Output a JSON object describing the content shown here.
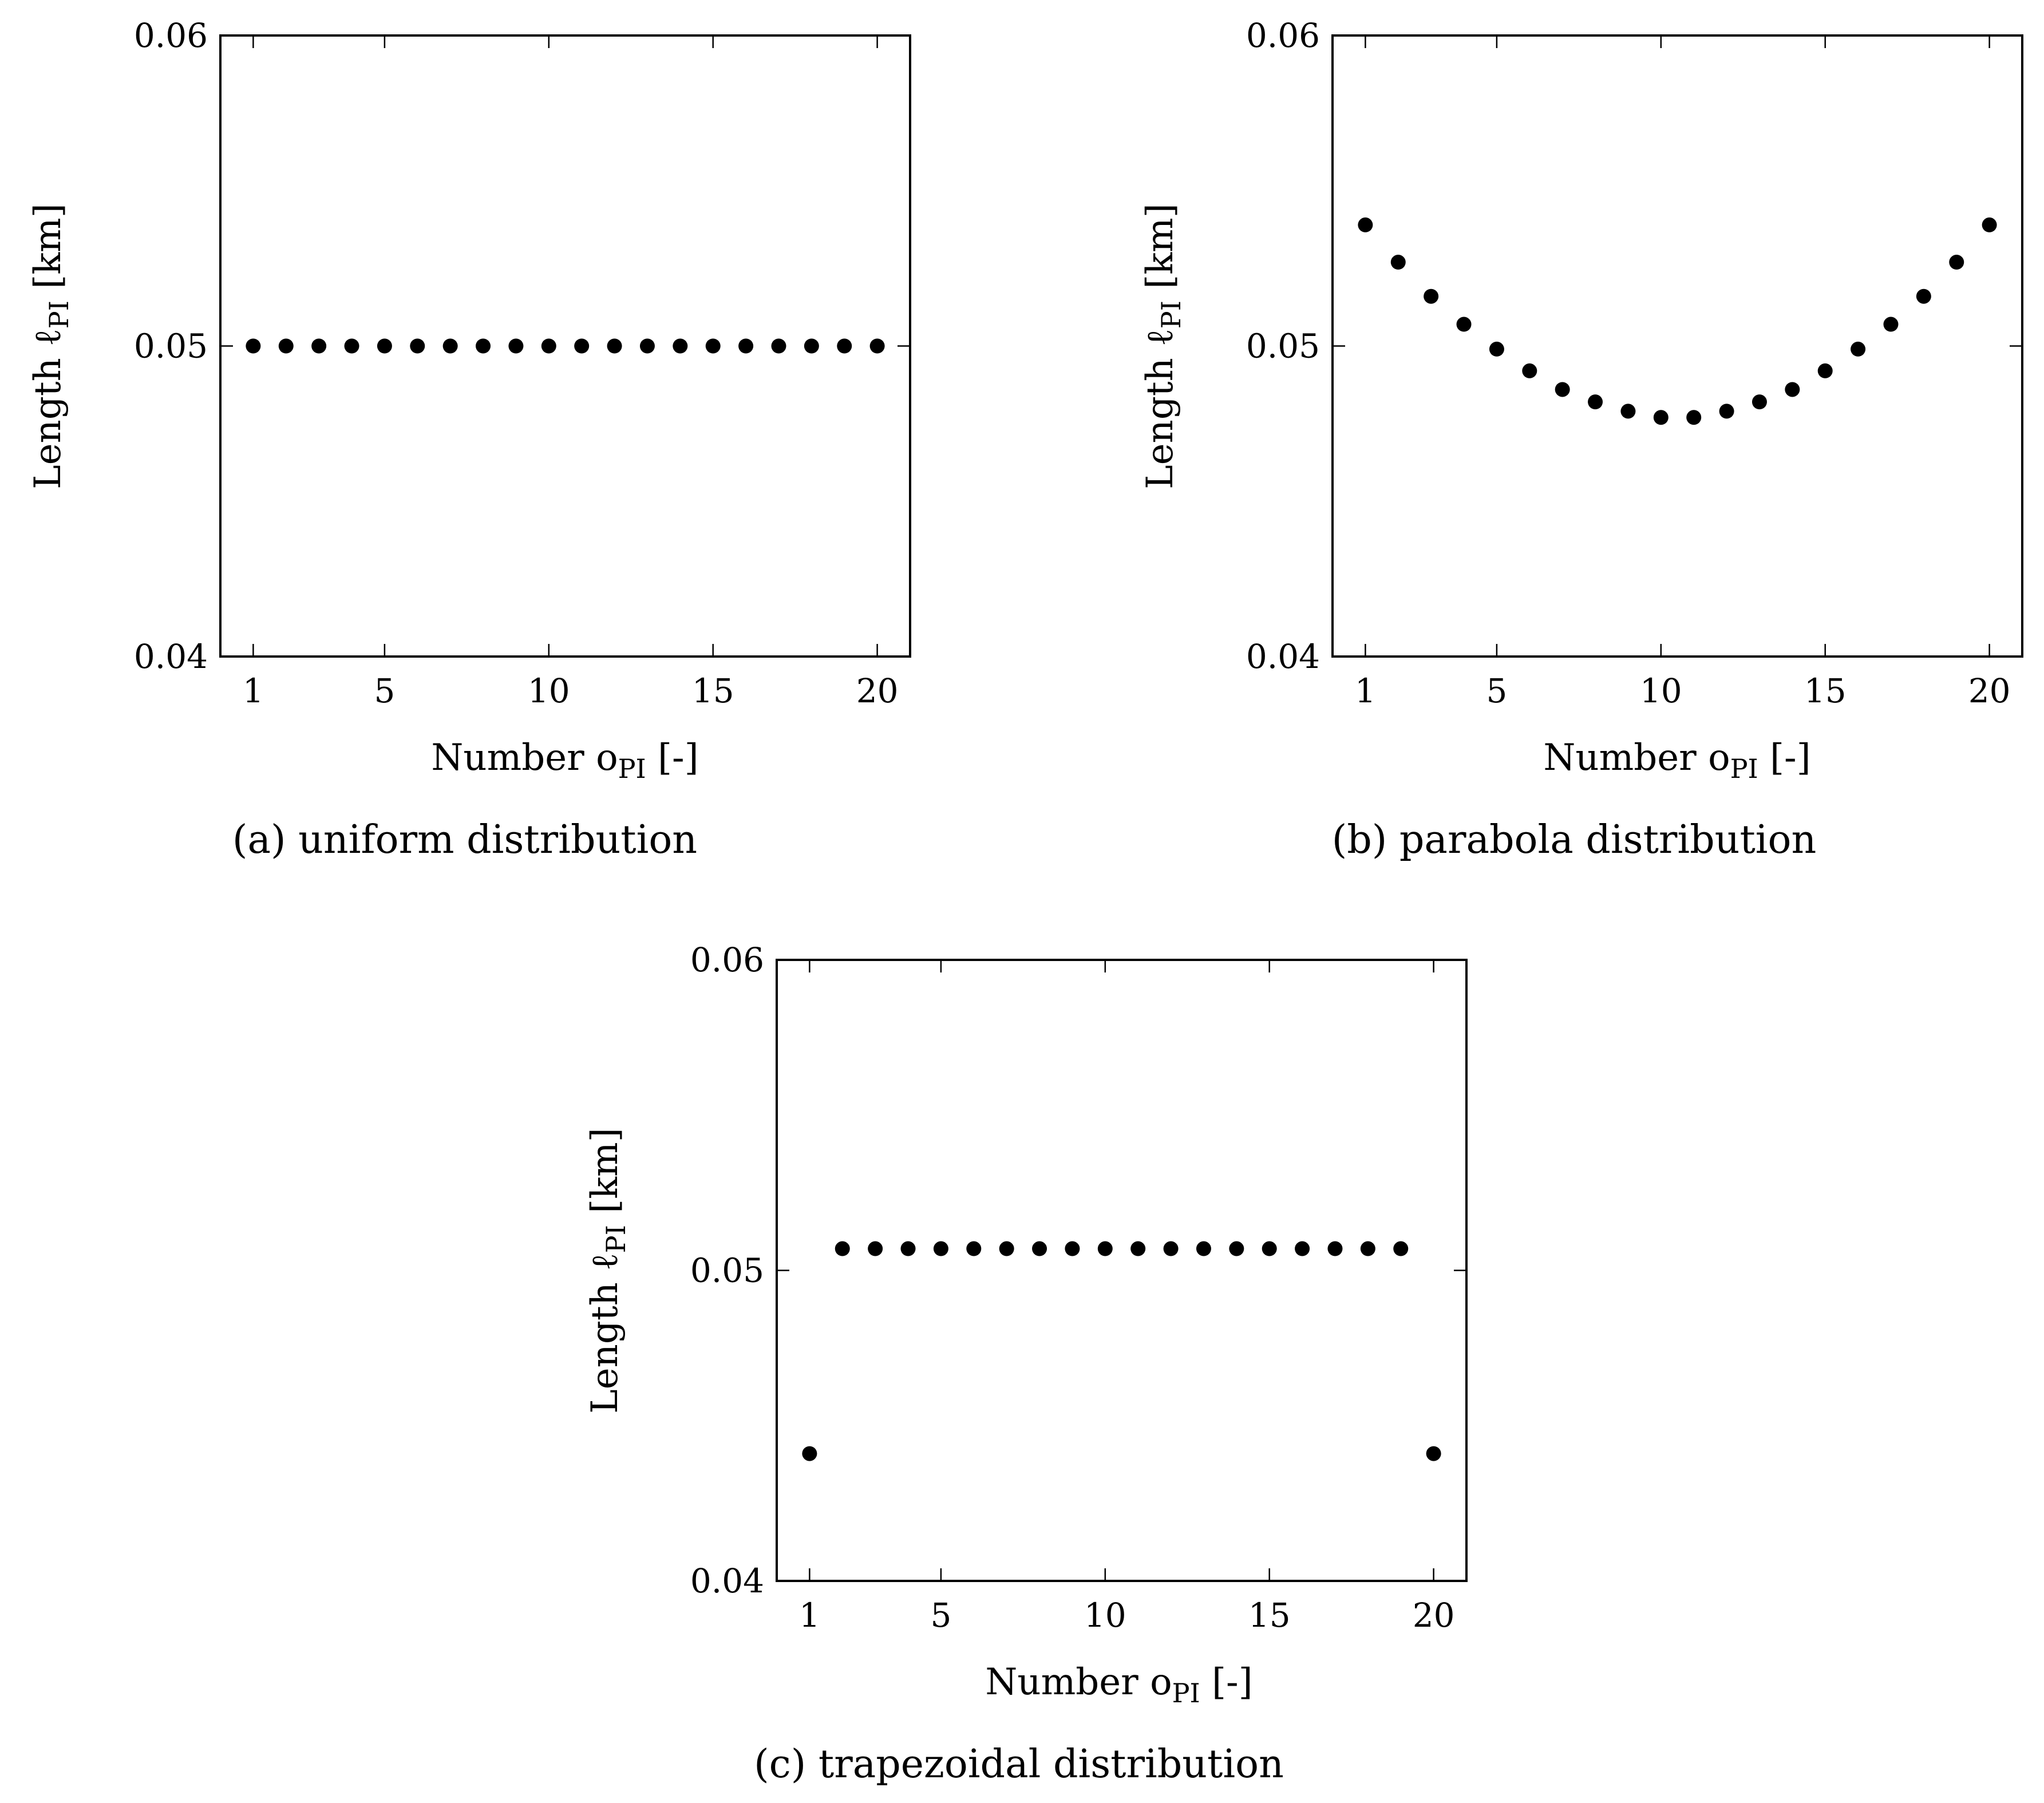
{
  "chart_data": [
    {
      "type": "scatter",
      "id": "a",
      "caption": "(a) uniform distribution",
      "xlabel": "Number o",
      "xlabel_sub": "PI",
      "xlabel_unit": " [-]",
      "ylabel": "Length ℓ",
      "ylabel_sub": "PI",
      "ylabel_unit": " [km]",
      "xlim": [
        0,
        21
      ],
      "ylim": [
        0.04,
        0.06
      ],
      "xticks": [
        1,
        5,
        10,
        15,
        20
      ],
      "yticks": [
        0.04,
        0.05,
        0.06
      ],
      "ytick_labels": [
        "0.04",
        "0.05",
        "0.06"
      ],
      "grid": false,
      "series": [
        {
          "name": "length",
          "x": [
            1,
            2,
            3,
            4,
            5,
            6,
            7,
            8,
            9,
            10,
            11,
            12,
            13,
            14,
            15,
            16,
            17,
            18,
            19,
            20
          ],
          "y": [
            0.05,
            0.05,
            0.05,
            0.05,
            0.05,
            0.05,
            0.05,
            0.05,
            0.05,
            0.05,
            0.05,
            0.05,
            0.05,
            0.05,
            0.05,
            0.05,
            0.05,
            0.05,
            0.05,
            0.05
          ]
        }
      ]
    },
    {
      "type": "scatter",
      "id": "b",
      "caption": "(b) parabola distribution",
      "xlabel": "Number o",
      "xlabel_sub": "PI",
      "xlabel_unit": " [-]",
      "ylabel": "Length ℓ",
      "ylabel_sub": "PI",
      "ylabel_unit": " [km]",
      "xlim": [
        0,
        21
      ],
      "ylim": [
        0.04,
        0.06
      ],
      "xticks": [
        1,
        5,
        10,
        15,
        20
      ],
      "yticks": [
        0.04,
        0.05,
        0.06
      ],
      "ytick_labels": [
        "0.04",
        "0.05",
        "0.06"
      ],
      "grid": false,
      "series": [
        {
          "name": "length",
          "x": [
            1,
            2,
            3,
            4,
            5,
            6,
            7,
            8,
            9,
            10,
            11,
            12,
            13,
            14,
            15,
            16,
            17,
            18,
            19,
            20
          ],
          "y": [
            0.0539,
            0.0527,
            0.0516,
            0.0507,
            0.0499,
            0.0492,
            0.0486,
            0.0482,
            0.0479,
            0.0477,
            0.0477,
            0.0479,
            0.0482,
            0.0486,
            0.0492,
            0.0499,
            0.0507,
            0.0516,
            0.0527,
            0.0539
          ]
        }
      ]
    },
    {
      "type": "scatter",
      "id": "c",
      "caption": "(c) trapezoidal distribution",
      "xlabel": "Number o",
      "xlabel_sub": "PI",
      "xlabel_unit": " [-]",
      "ylabel": "Length ℓ",
      "ylabel_sub": "PI",
      "ylabel_unit": " [km]",
      "xlim": [
        0,
        21
      ],
      "ylim": [
        0.04,
        0.06
      ],
      "xticks": [
        1,
        5,
        10,
        15,
        20
      ],
      "yticks": [
        0.04,
        0.05,
        0.06
      ],
      "ytick_labels": [
        "0.04",
        "0.05",
        "0.06"
      ],
      "grid": false,
      "series": [
        {
          "name": "length",
          "x": [
            1,
            2,
            3,
            4,
            5,
            6,
            7,
            8,
            9,
            10,
            11,
            12,
            13,
            14,
            15,
            16,
            17,
            18,
            19,
            20
          ],
          "y": [
            0.0441,
            0.0507,
            0.0507,
            0.0507,
            0.0507,
            0.0507,
            0.0507,
            0.0507,
            0.0507,
            0.0507,
            0.0507,
            0.0507,
            0.0507,
            0.0507,
            0.0507,
            0.0507,
            0.0507,
            0.0507,
            0.0507,
            0.0441
          ]
        }
      ]
    }
  ]
}
